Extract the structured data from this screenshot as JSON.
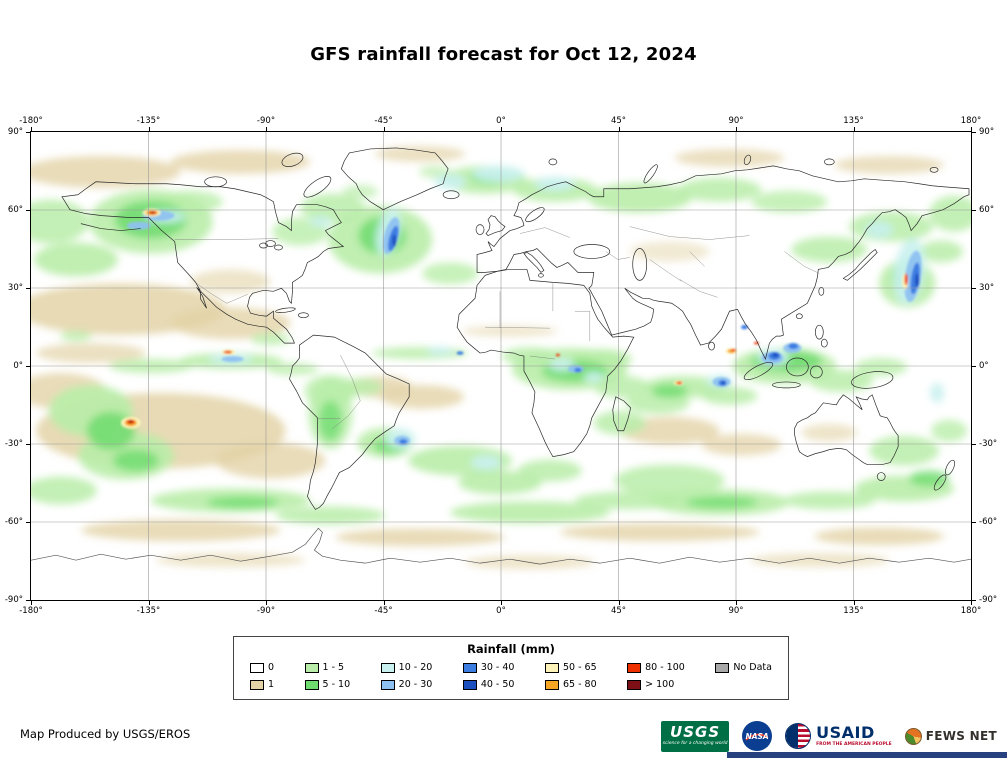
{
  "title": "GFS rainfall forecast for Oct 12, 2024",
  "map": {
    "lon_ticks": [
      "-180°",
      "-135°",
      "-90°",
      "-45°",
      "0°",
      "45°",
      "90°",
      "135°",
      "180°"
    ],
    "lat_ticks": [
      "90°",
      "60°",
      "30°",
      "0°",
      "-30°",
      "-60°",
      "-90°"
    ]
  },
  "legend": {
    "title": "Rainfall (mm)",
    "entries": [
      {
        "label": "0",
        "color": "#ffffff"
      },
      {
        "label": "1",
        "color": "#e3d3a7"
      },
      {
        "label": "1 - 5",
        "color": "#b9eda9"
      },
      {
        "label": "5 - 10",
        "color": "#6edc6e"
      },
      {
        "label": "10 - 20",
        "color": "#c9f1ef"
      },
      {
        "label": "20 - 30",
        "color": "#8ec1f1"
      },
      {
        "label": "30 - 40",
        "color": "#3c7de2"
      },
      {
        "label": "40 - 50",
        "color": "#1b4fc0"
      },
      {
        "label": "50 - 65",
        "color": "#fdf3b8"
      },
      {
        "label": "65 - 80",
        "color": "#f6a623"
      },
      {
        "label": "80 - 100",
        "color": "#ee2f00"
      },
      {
        "label": "> 100",
        "color": "#7d1016"
      },
      {
        "label": "No Data",
        "color": "#a8a8a8"
      }
    ]
  },
  "footer": {
    "credit": "Map Produced by USGS/EROS"
  },
  "logos": {
    "usgs": {
      "wordmark": "USGS",
      "tagline": "science for a changing world",
      "color": "#006f45"
    },
    "nasa": {
      "wordmark": "NASA",
      "color": "#0b3d91"
    },
    "usaid": {
      "wordmark": "USAID",
      "tagline": "FROM THE AMERICAN PEOPLE",
      "navy": "#002f6c",
      "red": "#ba0c2f"
    },
    "fewsnet": {
      "wordmark": "FEWS NET",
      "orange": "#e37222",
      "green": "#4c8b2b"
    }
  }
}
